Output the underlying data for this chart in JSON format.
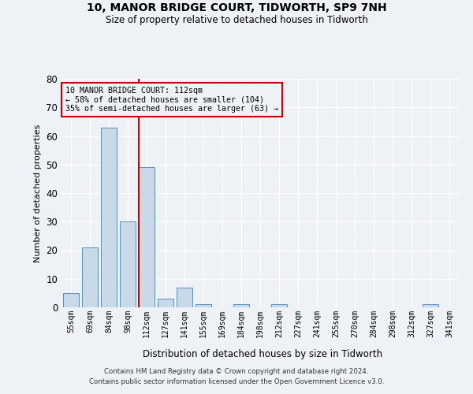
{
  "title1": "10, MANOR BRIDGE COURT, TIDWORTH, SP9 7NH",
  "title2": "Size of property relative to detached houses in Tidworth",
  "xlabel": "Distribution of detached houses by size in Tidworth",
  "ylabel": "Number of detached properties",
  "categories": [
    "55sqm",
    "69sqm",
    "84sqm",
    "98sqm",
    "112sqm",
    "127sqm",
    "141sqm",
    "155sqm",
    "169sqm",
    "184sqm",
    "198sqm",
    "212sqm",
    "227sqm",
    "241sqm",
    "255sqm",
    "270sqm",
    "284sqm",
    "298sqm",
    "312sqm",
    "327sqm",
    "341sqm"
  ],
  "values": [
    5,
    21,
    63,
    30,
    49,
    3,
    7,
    1,
    0,
    1,
    0,
    1,
    0,
    0,
    0,
    0,
    0,
    0,
    0,
    1,
    0
  ],
  "bar_color": "#c9d9e8",
  "bar_edge_color": "#5b8db8",
  "highlight_index": 4,
  "highlight_line_color": "#cc0000",
  "ylim": [
    0,
    80
  ],
  "yticks": [
    0,
    10,
    20,
    30,
    40,
    50,
    60,
    70,
    80
  ],
  "annotation_line1": "10 MANOR BRIDGE COURT: 112sqm",
  "annotation_line2": "← 58% of detached houses are smaller (104)",
  "annotation_line3": "35% of semi-detached houses are larger (63) →",
  "annotation_box_color": "#cc0000",
  "footer1": "Contains HM Land Registry data © Crown copyright and database right 2024.",
  "footer2": "Contains public sector information licensed under the Open Government Licence v3.0.",
  "background_color": "#eef2f7",
  "grid_color": "#ffffff"
}
